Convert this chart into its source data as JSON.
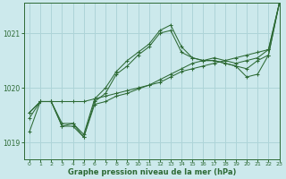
{
  "title": "Graphe pression niveau de la mer (hPa)",
  "background_color": "#cce9ec",
  "grid_color": "#aed4d8",
  "line_color": "#2d6a35",
  "marker_color": "#2d6a35",
  "xlim": [
    -0.5,
    23
  ],
  "ylim": [
    1018.7,
    1021.55
  ],
  "yticks": [
    1019,
    1020,
    1021
  ],
  "xticks": [
    0,
    1,
    2,
    3,
    4,
    5,
    6,
    7,
    8,
    9,
    10,
    11,
    12,
    13,
    14,
    15,
    16,
    17,
    18,
    19,
    20,
    21,
    22,
    23
  ],
  "lines": [
    {
      "x": [
        0,
        1,
        2,
        3,
        4,
        5,
        6,
        7,
        8,
        9,
        10,
        11,
        12,
        13,
        14,
        15,
        16,
        17,
        18,
        19,
        20,
        21,
        22,
        23
      ],
      "y": [
        1019.55,
        1019.75,
        1019.75,
        1019.75,
        1019.75,
        1019.75,
        1019.8,
        1019.85,
        1019.9,
        1019.95,
        1020.0,
        1020.05,
        1020.1,
        1020.2,
        1020.3,
        1020.35,
        1020.4,
        1020.45,
        1020.5,
        1020.55,
        1020.6,
        1020.65,
        1020.7,
        1021.55
      ]
    },
    {
      "x": [
        0,
        1,
        2,
        3,
        4,
        5,
        6,
        7,
        8,
        9,
        10,
        11,
        12,
        13,
        14,
        15,
        16,
        17,
        18,
        19,
        20,
        21,
        22,
        23
      ],
      "y": [
        1019.55,
        1019.75,
        1019.75,
        1019.35,
        1019.35,
        1019.15,
        1019.8,
        1020.0,
        1020.3,
        1020.5,
        1020.65,
        1020.8,
        1021.05,
        1021.15,
        1020.75,
        1020.55,
        1020.5,
        1020.5,
        1020.45,
        1020.4,
        1020.35,
        1020.5,
        1020.6,
        1021.55
      ]
    },
    {
      "x": [
        0,
        1,
        2,
        3,
        4,
        5,
        6,
        7,
        8,
        9,
        10,
        11,
        12,
        13,
        14,
        15,
        16,
        17,
        18,
        19,
        20,
        21,
        22,
        23
      ],
      "y": [
        1019.45,
        1019.75,
        1019.75,
        1019.3,
        1019.3,
        1019.1,
        1019.75,
        1019.9,
        1020.25,
        1020.4,
        1020.6,
        1020.75,
        1021.0,
        1021.05,
        1020.65,
        1020.55,
        1020.5,
        1020.5,
        1020.45,
        1020.4,
        1020.2,
        1020.25,
        1020.6,
        1021.55
      ]
    },
    {
      "x": [
        0,
        1,
        2,
        3,
        4,
        5,
        6,
        7,
        8,
        9,
        10,
        11,
        12,
        13,
        14,
        15,
        16,
        17,
        18,
        19,
        20,
        21,
        22,
        23
      ],
      "y": [
        1019.2,
        1019.75,
        1019.75,
        1019.3,
        1019.35,
        1019.1,
        1019.7,
        1019.75,
        1019.85,
        1019.9,
        1019.98,
        1020.05,
        1020.15,
        1020.25,
        1020.35,
        1020.45,
        1020.5,
        1020.55,
        1020.5,
        1020.45,
        1020.5,
        1020.55,
        1020.7,
        1021.55
      ]
    }
  ]
}
